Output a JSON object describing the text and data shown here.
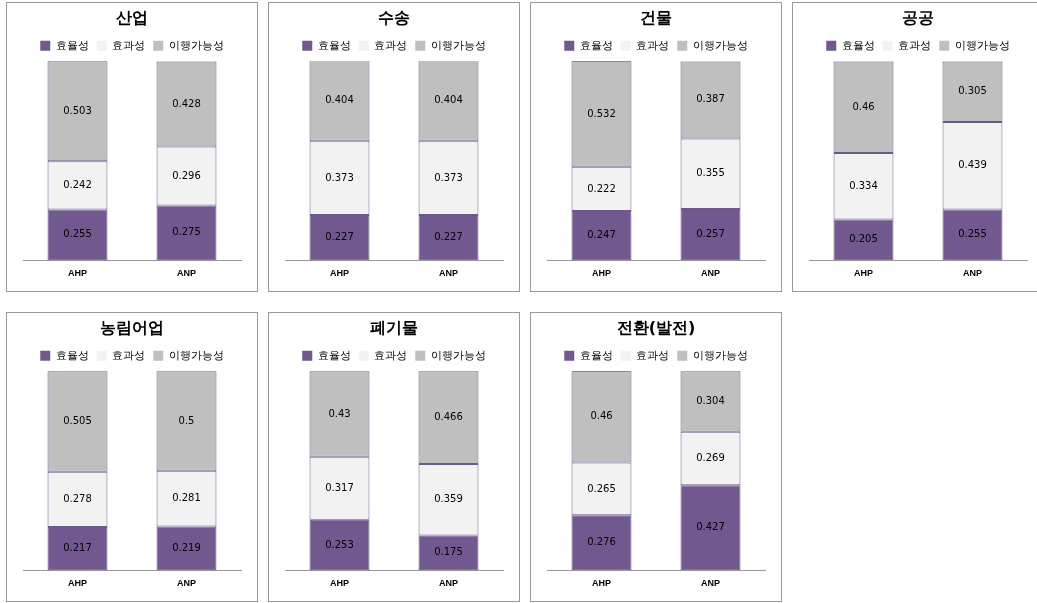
{
  "chart_data": [
    {
      "type": "bar",
      "title": "산업",
      "categories": [
        "AHP",
        "ANP"
      ],
      "stacked": true,
      "data_labels": true,
      "legend": "top",
      "grid": false,
      "tick_labels": "x",
      "ylim": [
        0,
        1
      ],
      "series": [
        {
          "name": "효율성",
          "color": "#71598f",
          "values": [
            0.255,
            0.275
          ]
        },
        {
          "name": "효과성",
          "color": "#f2f2f2",
          "values": [
            0.242,
            0.296
          ]
        },
        {
          "name": "이행가능성",
          "color": "#bfbfbf",
          "values": [
            0.503,
            0.428
          ]
        }
      ]
    },
    {
      "type": "bar",
      "title": "수송",
      "categories": [
        "AHP",
        "ANP"
      ],
      "stacked": true,
      "data_labels": true,
      "legend": "top",
      "grid": false,
      "tick_labels": "x",
      "ylim": [
        0,
        1
      ],
      "series": [
        {
          "name": "효율성",
          "color": "#71598f",
          "values": [
            0.227,
            0.227
          ]
        },
        {
          "name": "효과성",
          "color": "#f2f2f2",
          "values": [
            0.373,
            0.373
          ]
        },
        {
          "name": "이행가능성",
          "color": "#bfbfbf",
          "values": [
            0.404,
            0.404
          ]
        }
      ]
    },
    {
      "type": "bar",
      "title": "건물",
      "categories": [
        "AHP",
        "ANP"
      ],
      "stacked": true,
      "data_labels": true,
      "legend": "top",
      "grid": false,
      "tick_labels": "x",
      "ylim": [
        0,
        1
      ],
      "series": [
        {
          "name": "효율성",
          "color": "#71598f",
          "values": [
            0.247,
            0.257
          ]
        },
        {
          "name": "효과성",
          "color": "#f2f2f2",
          "values": [
            0.222,
            0.355
          ]
        },
        {
          "name": "이행가능성",
          "color": "#bfbfbf",
          "values": [
            0.532,
            0.387
          ]
        }
      ]
    },
    {
      "type": "bar",
      "title": "공공",
      "categories": [
        "AHP",
        "ANP"
      ],
      "stacked": true,
      "data_labels": true,
      "legend": "top",
      "grid": false,
      "tick_labels": "x",
      "ylim": [
        0,
        1
      ],
      "series": [
        {
          "name": "효율성",
          "color": "#71598f",
          "values": [
            0.205,
            0.255
          ]
        },
        {
          "name": "효과성",
          "color": "#f2f2f2",
          "values": [
            0.334,
            0.439
          ]
        },
        {
          "name": "이행가능성",
          "color": "#bfbfbf",
          "values": [
            0.46,
            0.305
          ]
        }
      ]
    },
    {
      "type": "bar",
      "title": "농림어업",
      "categories": [
        "AHP",
        "ANP"
      ],
      "stacked": true,
      "data_labels": true,
      "legend": "top",
      "grid": false,
      "tick_labels": "x",
      "ylim": [
        0,
        1
      ],
      "series": [
        {
          "name": "효율성",
          "color": "#71598f",
          "values": [
            0.217,
            0.219
          ]
        },
        {
          "name": "효과성",
          "color": "#f2f2f2",
          "values": [
            0.278,
            0.281
          ]
        },
        {
          "name": "이행가능성",
          "color": "#bfbfbf",
          "values": [
            0.505,
            0.5
          ]
        }
      ]
    },
    {
      "type": "bar",
      "title": "폐기물",
      "categories": [
        "AHP",
        "ANP"
      ],
      "stacked": true,
      "data_labels": true,
      "legend": "top",
      "grid": false,
      "tick_labels": "x",
      "ylim": [
        0,
        1
      ],
      "series": [
        {
          "name": "효율성",
          "color": "#71598f",
          "values": [
            0.253,
            0.175
          ]
        },
        {
          "name": "효과성",
          "color": "#f2f2f2",
          "values": [
            0.317,
            0.359
          ]
        },
        {
          "name": "이행가능성",
          "color": "#bfbfbf",
          "values": [
            0.43,
            0.466
          ]
        }
      ]
    },
    {
      "type": "bar",
      "title": "전환(발전)",
      "categories": [
        "AHP",
        "ANP"
      ],
      "stacked": true,
      "data_labels": true,
      "legend": "top",
      "grid": false,
      "tick_labels": "x",
      "ylim": [
        0,
        1
      ],
      "series": [
        {
          "name": "효율성",
          "color": "#71598f",
          "values": [
            0.276,
            0.427
          ]
        },
        {
          "name": "효과성",
          "color": "#f2f2f2",
          "values": [
            0.265,
            0.269
          ]
        },
        {
          "name": "이행가능성",
          "color": "#bfbfbf",
          "values": [
            0.46,
            0.304
          ]
        }
      ]
    }
  ]
}
